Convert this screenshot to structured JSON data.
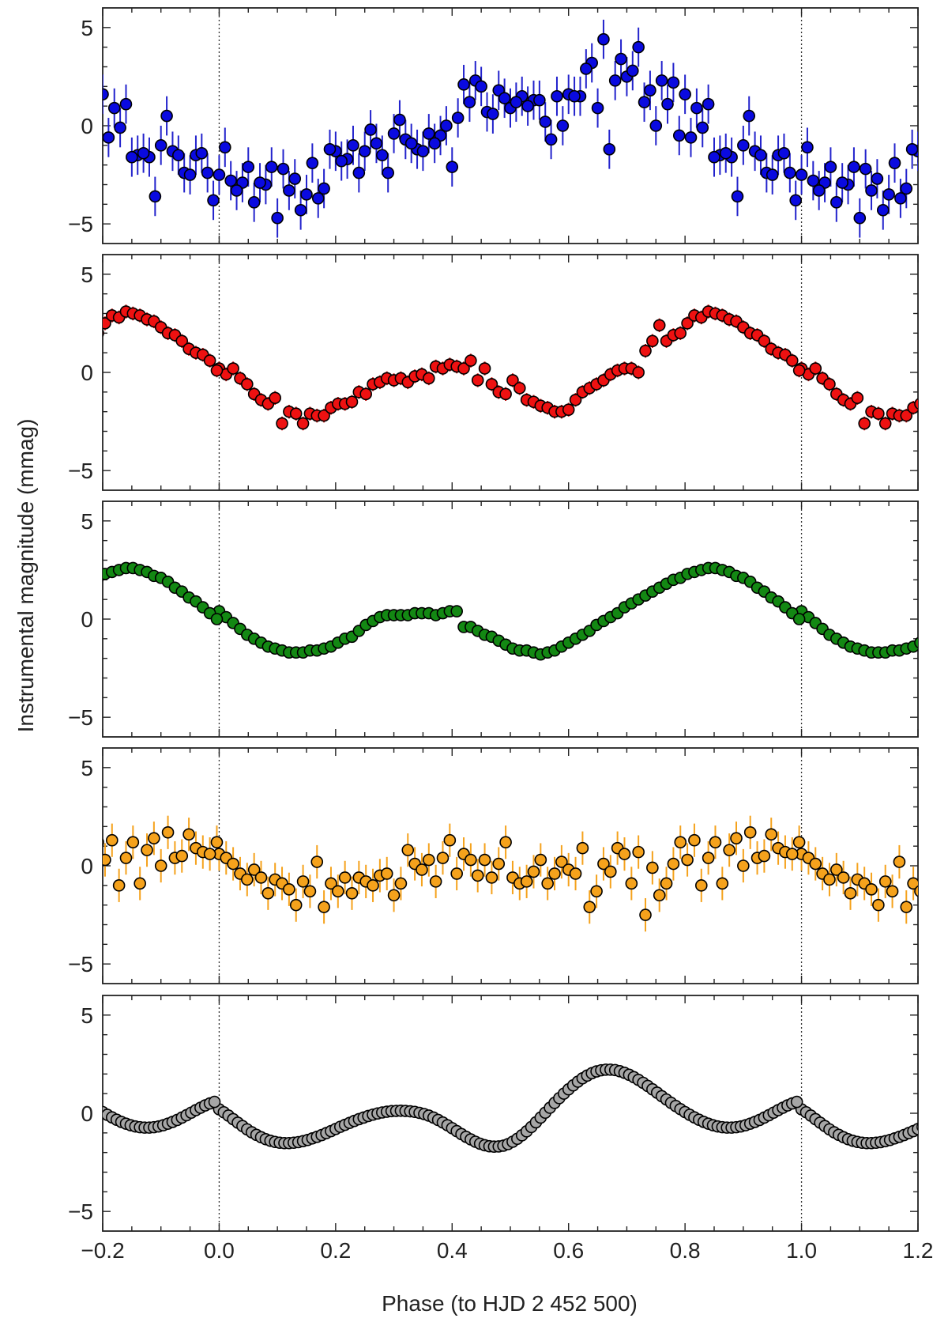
{
  "chart_data": {
    "type": "scatter",
    "ylabel": "Instrumental magnitude (mmag)",
    "xlabel": "Phase (to HJD 2 452 500)",
    "xlim": [
      -0.2,
      1.2
    ],
    "ylim": [
      6,
      -6
    ],
    "y_inverted": true,
    "x_ticks": [
      "−0.2",
      "0.0",
      "0.2",
      "0.4",
      "0.6",
      "0.8",
      "1.0",
      "1.2"
    ],
    "x_tick_values": [
      -0.2,
      0.0,
      0.2,
      0.4,
      0.6,
      0.8,
      1.0,
      1.2
    ],
    "y_ticks": [
      "−5",
      "0",
      "5"
    ],
    "y_tick_values": [
      -5,
      0,
      5
    ],
    "reference_lines_x": [
      0.0,
      1.0
    ],
    "fold_period": 1.0,
    "series": [
      {
        "color": "#0a0ae0",
        "error_color": "#2222cc",
        "error": 1.0,
        "x": [
          0.0,
          0.02,
          0.04,
          0.06,
          0.08,
          0.1,
          0.12,
          0.14,
          0.16,
          0.18,
          0.2,
          0.22,
          0.24,
          0.26,
          0.28,
          0.3,
          0.32,
          0.34,
          0.36,
          0.38,
          0.4,
          0.42,
          0.44,
          0.46,
          0.48,
          0.5,
          0.52,
          0.54,
          0.56,
          0.58,
          0.6,
          0.62,
          0.64,
          0.66,
          0.68,
          0.7,
          0.72,
          0.74,
          0.76,
          0.78,
          0.8,
          0.82,
          0.84,
          0.86,
          0.88,
          0.9,
          0.92,
          0.94,
          0.96,
          0.98,
          0.01,
          0.03,
          0.05,
          0.07,
          0.09,
          0.11,
          0.13,
          0.15,
          0.17,
          0.19,
          0.21,
          0.23,
          0.25,
          0.27,
          0.29,
          0.31,
          0.33,
          0.35,
          0.37,
          0.39,
          0.41,
          0.43,
          0.45,
          0.47,
          0.49,
          0.51,
          0.53,
          0.55,
          0.57,
          0.59,
          0.61,
          0.63,
          0.65,
          0.67,
          0.69,
          0.71,
          0.73,
          0.75,
          0.77,
          0.79,
          0.81,
          0.83,
          0.85,
          0.87,
          0.89,
          0.91,
          0.93,
          0.95,
          0.97,
          0.99
        ],
        "y": [
          -2.5,
          -2.8,
          -2.9,
          -3.9,
          -3.0,
          -4.7,
          -3.3,
          -4.3,
          -1.9,
          -3.2,
          -1.3,
          -1.7,
          -2.4,
          -0.2,
          -1.5,
          -0.4,
          -0.7,
          -1.2,
          -0.4,
          -0.5,
          -2.1,
          2.1,
          2.3,
          0.7,
          1.8,
          0.9,
          1.5,
          1.3,
          0.2,
          1.5,
          1.6,
          1.5,
          3.2,
          4.4,
          2.3,
          2.5,
          4.0,
          1.8,
          2.3,
          2.2,
          1.6,
          0.9,
          1.1,
          -1.5,
          -1.6,
          -1.0,
          -1.3,
          -2.4,
          -1.5,
          -2.4,
          -1.1,
          -3.3,
          -2.1,
          -2.9,
          -2.1,
          -2.2,
          -2.7,
          -3.5,
          -3.7,
          -1.2,
          -1.8,
          -1.0,
          -1.3,
          -0.9,
          -2.4,
          0.3,
          -0.9,
          -1.3,
          -0.9,
          0.0,
          0.4,
          1.2,
          2.0,
          0.6,
          1.4,
          1.2,
          1.0,
          1.3,
          -0.7,
          0.0,
          1.5,
          2.9,
          0.9,
          -1.2,
          3.4,
          2.8,
          1.2,
          0.0,
          1.1,
          -0.5,
          -0.6,
          -0.1,
          -1.6,
          -1.4,
          -3.6,
          0.5,
          -1.5,
          -2.5,
          -1.4,
          -3.8
        ]
      },
      {
        "color": "#ee1111",
        "error_color": "#cc1111",
        "error": 0.35,
        "x": [
          0.0,
          0.012,
          0.024,
          0.036,
          0.048,
          0.06,
          0.072,
          0.084,
          0.096,
          0.108,
          0.12,
          0.132,
          0.144,
          0.156,
          0.168,
          0.18,
          0.192,
          0.204,
          0.216,
          0.228,
          0.24,
          0.252,
          0.264,
          0.276,
          0.288,
          0.3,
          0.312,
          0.324,
          0.336,
          0.348,
          0.36,
          0.372,
          0.384,
          0.396,
          0.408,
          0.42,
          0.432,
          0.444,
          0.456,
          0.468,
          0.48,
          0.492,
          0.504,
          0.516,
          0.528,
          0.54,
          0.552,
          0.564,
          0.576,
          0.588,
          0.6,
          0.612,
          0.624,
          0.636,
          0.648,
          0.66,
          0.672,
          0.684,
          0.696,
          0.708,
          0.72,
          0.732,
          0.744,
          0.756,
          0.768,
          0.78,
          0.792,
          0.804,
          0.816,
          0.828,
          0.84,
          0.852,
          0.864,
          0.876,
          0.888,
          0.9,
          0.912,
          0.924,
          0.936,
          0.948,
          0.96,
          0.972,
          0.984,
          0.996
        ],
        "y": [
          0.2,
          -0.1,
          0.2,
          -0.3,
          -0.6,
          -1.1,
          -1.4,
          -1.6,
          -1.3,
          -2.6,
          -2.0,
          -2.1,
          -2.6,
          -2.1,
          -2.2,
          -2.2,
          -1.8,
          -1.6,
          -1.6,
          -1.5,
          -1.0,
          -1.1,
          -0.6,
          -0.5,
          -0.3,
          -0.4,
          -0.3,
          -0.5,
          -0.2,
          -0.1,
          -0.3,
          0.3,
          0.2,
          0.4,
          0.3,
          0.2,
          0.6,
          -0.4,
          0.2,
          -0.6,
          -1.0,
          -1.1,
          -0.4,
          -0.8,
          -1.4,
          -1.5,
          -1.7,
          -1.8,
          -2.0,
          -2.0,
          -1.9,
          -1.4,
          -1.0,
          -0.8,
          -0.6,
          -0.4,
          -0.1,
          0.1,
          0.2,
          0.2,
          0.0,
          1.1,
          1.6,
          2.4,
          1.6,
          1.9,
          2.0,
          2.5,
          2.9,
          2.8,
          3.1,
          3.0,
          2.9,
          2.7,
          2.6,
          2.3,
          2.0,
          1.9,
          1.6,
          1.2,
          1.0,
          0.9,
          0.6,
          0.1
        ]
      },
      {
        "color": "#138813",
        "error_color": "#106610",
        "error": 0.1,
        "x": [
          0.0,
          0.012,
          0.024,
          0.036,
          0.048,
          0.06,
          0.072,
          0.084,
          0.096,
          0.108,
          0.12,
          0.132,
          0.144,
          0.156,
          0.168,
          0.18,
          0.192,
          0.204,
          0.216,
          0.228,
          0.24,
          0.252,
          0.264,
          0.276,
          0.288,
          0.3,
          0.312,
          0.324,
          0.336,
          0.348,
          0.36,
          0.372,
          0.384,
          0.396,
          0.408,
          0.42,
          0.432,
          0.444,
          0.456,
          0.468,
          0.48,
          0.492,
          0.504,
          0.516,
          0.528,
          0.54,
          0.552,
          0.564,
          0.576,
          0.588,
          0.6,
          0.612,
          0.624,
          0.636,
          0.648,
          0.66,
          0.672,
          0.684,
          0.696,
          0.708,
          0.72,
          0.732,
          0.744,
          0.756,
          0.768,
          0.78,
          0.792,
          0.804,
          0.816,
          0.828,
          0.84,
          0.852,
          0.864,
          0.876,
          0.888,
          0.9,
          0.912,
          0.924,
          0.936,
          0.948,
          0.96,
          0.972,
          0.984,
          0.996
        ],
        "y": [
          0.4,
          0.1,
          -0.2,
          -0.5,
          -0.8,
          -1.0,
          -1.2,
          -1.4,
          -1.5,
          -1.6,
          -1.7,
          -1.7,
          -1.7,
          -1.6,
          -1.6,
          -1.5,
          -1.4,
          -1.2,
          -1.0,
          -0.9,
          -0.6,
          -0.3,
          -0.1,
          0.1,
          0.2,
          0.2,
          0.2,
          0.2,
          0.3,
          0.3,
          0.3,
          0.2,
          0.3,
          0.4,
          0.4,
          -0.4,
          -0.4,
          -0.6,
          -0.8,
          -0.9,
          -1.1,
          -1.3,
          -1.5,
          -1.6,
          -1.6,
          -1.7,
          -1.8,
          -1.7,
          -1.6,
          -1.4,
          -1.2,
          -1.0,
          -0.8,
          -0.6,
          -0.3,
          -0.1,
          0.1,
          0.3,
          0.6,
          0.8,
          1.0,
          1.2,
          1.4,
          1.6,
          1.8,
          2.0,
          2.1,
          2.3,
          2.4,
          2.5,
          2.6,
          2.6,
          2.5,
          2.4,
          2.2,
          2.1,
          1.9,
          1.6,
          1.4,
          1.1,
          0.9,
          0.6,
          0.3,
          0.0
        ]
      },
      {
        "color": "#f5a21c",
        "error_color": "#f5a21c",
        "error": 0.85,
        "x": [
          0.0,
          0.012,
          0.024,
          0.036,
          0.048,
          0.06,
          0.072,
          0.084,
          0.096,
          0.108,
          0.12,
          0.132,
          0.144,
          0.156,
          0.168,
          0.18,
          0.192,
          0.204,
          0.216,
          0.228,
          0.24,
          0.252,
          0.264,
          0.276,
          0.288,
          0.3,
          0.312,
          0.324,
          0.336,
          0.348,
          0.36,
          0.372,
          0.384,
          0.396,
          0.408,
          0.42,
          0.432,
          0.444,
          0.456,
          0.468,
          0.48,
          0.492,
          0.504,
          0.516,
          0.528,
          0.54,
          0.552,
          0.564,
          0.576,
          0.588,
          0.6,
          0.612,
          0.624,
          0.636,
          0.648,
          0.66,
          0.672,
          0.684,
          0.696,
          0.708,
          0.72,
          0.732,
          0.744,
          0.756,
          0.768,
          0.78,
          0.792,
          0.804,
          0.816,
          0.828,
          0.84,
          0.852,
          0.864,
          0.876,
          0.888,
          0.9,
          0.912,
          0.924,
          0.936,
          0.948,
          0.96,
          0.972,
          0.984,
          0.996
        ],
        "y": [
          0.6,
          0.4,
          0.1,
          -0.4,
          -0.7,
          -0.2,
          -0.6,
          -1.4,
          -0.7,
          -0.9,
          -1.2,
          -2.0,
          -0.8,
          -1.3,
          0.2,
          -2.1,
          -0.9,
          -1.3,
          -0.6,
          -1.4,
          -0.6,
          -0.8,
          -1.0,
          -0.5,
          -0.4,
          -1.5,
          -0.9,
          0.8,
          0.1,
          -0.2,
          0.3,
          -0.8,
          0.4,
          1.3,
          -0.4,
          0.6,
          0.3,
          -0.5,
          0.3,
          -0.6,
          0.1,
          1.2,
          -0.6,
          -0.9,
          -0.8,
          -0.3,
          0.3,
          -0.9,
          -0.4,
          0.2,
          -0.2,
          -0.4,
          0.9,
          -2.1,
          -1.3,
          0.1,
          -0.3,
          0.9,
          0.6,
          -0.9,
          0.7,
          -2.5,
          -0.1,
          -1.5,
          -0.9,
          0.1,
          1.2,
          0.3,
          1.3,
          -1.0,
          0.4,
          1.2,
          -0.9,
          0.8,
          1.4,
          0.0,
          1.7,
          0.4,
          0.5,
          1.6,
          0.9,
          0.7,
          0.6,
          1.2
        ]
      },
      {
        "color": "#a6a6a6",
        "error_color": "#808080",
        "error": 0.0,
        "x": [
          0.0,
          0.008,
          0.016,
          0.024,
          0.032,
          0.04,
          0.048,
          0.056,
          0.064,
          0.072,
          0.08,
          0.088,
          0.096,
          0.104,
          0.112,
          0.12,
          0.128,
          0.136,
          0.144,
          0.152,
          0.16,
          0.168,
          0.176,
          0.184,
          0.192,
          0.2,
          0.208,
          0.216,
          0.224,
          0.232,
          0.24,
          0.248,
          0.256,
          0.264,
          0.272,
          0.28,
          0.288,
          0.296,
          0.304,
          0.312,
          0.32,
          0.328,
          0.336,
          0.344,
          0.352,
          0.36,
          0.368,
          0.376,
          0.384,
          0.392,
          0.4,
          0.408,
          0.416,
          0.424,
          0.432,
          0.44,
          0.448,
          0.456,
          0.464,
          0.472,
          0.48,
          0.488,
          0.496,
          0.504,
          0.512,
          0.52,
          0.528,
          0.536,
          0.544,
          0.552,
          0.56,
          0.568,
          0.576,
          0.584,
          0.592,
          0.6,
          0.608,
          0.616,
          0.624,
          0.632,
          0.64,
          0.648,
          0.656,
          0.664,
          0.672,
          0.68,
          0.688,
          0.696,
          0.704,
          0.712,
          0.72,
          0.728,
          0.736,
          0.744,
          0.752,
          0.76,
          0.768,
          0.776,
          0.784,
          0.792,
          0.8,
          0.808,
          0.816,
          0.824,
          0.832,
          0.84,
          0.848,
          0.856,
          0.864,
          0.872,
          0.88,
          0.888,
          0.896,
          0.904,
          0.912,
          0.92,
          0.928,
          0.936,
          0.944,
          0.952,
          0.96,
          0.968,
          0.976,
          0.984,
          0.992
        ],
        "y": [
          0.2,
          0.05,
          -0.12,
          -0.3,
          -0.48,
          -0.65,
          -0.82,
          -0.97,
          -1.1,
          -1.22,
          -1.32,
          -1.4,
          -1.46,
          -1.5,
          -1.52,
          -1.52,
          -1.5,
          -1.47,
          -1.42,
          -1.36,
          -1.28,
          -1.2,
          -1.11,
          -1.01,
          -0.91,
          -0.8,
          -0.69,
          -0.59,
          -0.49,
          -0.39,
          -0.3,
          -0.22,
          -0.14,
          -0.07,
          -0.01,
          0.04,
          0.08,
          0.11,
          0.12,
          0.13,
          0.12,
          0.1,
          0.07,
          0.02,
          -0.04,
          -0.12,
          -0.22,
          -0.34,
          -0.47,
          -0.61,
          -0.76,
          -0.91,
          -1.06,
          -1.2,
          -1.33,
          -1.45,
          -1.55,
          -1.63,
          -1.68,
          -1.7,
          -1.69,
          -1.65,
          -1.57,
          -1.45,
          -1.3,
          -1.12,
          -0.92,
          -0.7,
          -0.46,
          -0.22,
          0.03,
          0.28,
          0.53,
          0.77,
          1.0,
          1.22,
          1.42,
          1.61,
          1.78,
          1.92,
          2.04,
          2.13,
          2.19,
          2.22,
          2.22,
          2.2,
          2.14,
          2.06,
          1.96,
          1.84,
          1.7,
          1.55,
          1.39,
          1.22,
          1.05,
          0.87,
          0.7,
          0.53,
          0.37,
          0.21,
          0.06,
          -0.08,
          -0.21,
          -0.33,
          -0.44,
          -0.53,
          -0.61,
          -0.67,
          -0.71,
          -0.73,
          -0.73,
          -0.71,
          -0.67,
          -0.61,
          -0.53,
          -0.44,
          -0.34,
          -0.22,
          -0.1,
          0.03,
          0.16,
          0.28,
          0.4,
          0.5,
          0.58
        ]
      }
    ]
  }
}
